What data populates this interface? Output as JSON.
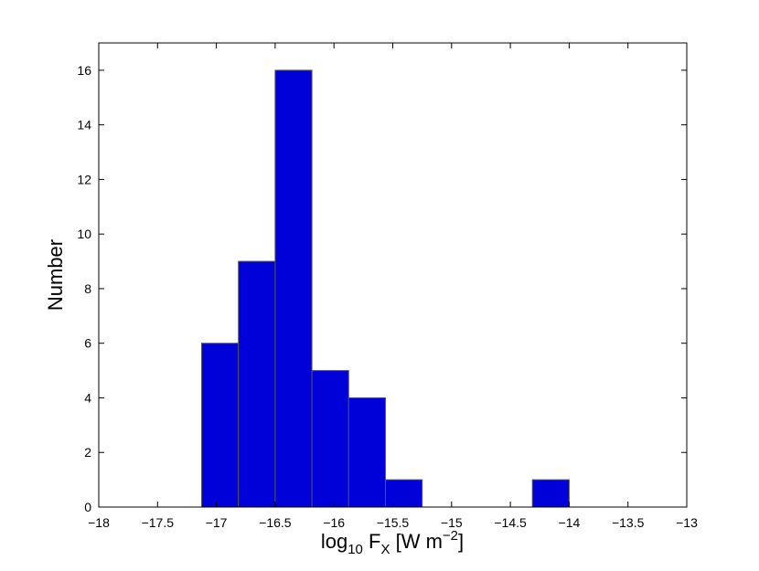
{
  "chart_data": {
    "type": "bar",
    "subtype": "histogram",
    "bins": [
      {
        "x_start": -17.125,
        "x_end": -16.8125,
        "value": 6
      },
      {
        "x_start": -16.8125,
        "x_end": -16.5,
        "value": 9
      },
      {
        "x_start": -16.5,
        "x_end": -16.1875,
        "value": 16
      },
      {
        "x_start": -16.1875,
        "x_end": -15.875,
        "value": 5
      },
      {
        "x_start": -15.875,
        "x_end": -15.5625,
        "value": 4
      },
      {
        "x_start": -15.5625,
        "x_end": -15.25,
        "value": 1
      },
      {
        "x_start": -14.3125,
        "x_end": -14.0,
        "value": 1
      }
    ],
    "xlim": [
      -18,
      -13
    ],
    "ylim": [
      0,
      17
    ],
    "xticks": [
      "−18",
      "−17.5",
      "−17",
      "−16.5",
      "−16",
      "−15.5",
      "−15",
      "−14.5",
      "−14",
      "−13.5",
      "−13"
    ],
    "xtick_values": [
      -18,
      -17.5,
      -17,
      -16.5,
      -16,
      -15.5,
      -15,
      -14.5,
      -14,
      -13.5,
      -13
    ],
    "yticks": [
      "0",
      "2",
      "4",
      "6",
      "8",
      "10",
      "12",
      "14",
      "16"
    ],
    "ytick_values": [
      0,
      2,
      4,
      6,
      8,
      10,
      12,
      14,
      16
    ],
    "xlabel": {
      "main": "log",
      "sub": "10",
      "mid": " F",
      "sub2": "X",
      "rest": " [W m",
      "sup": "−2",
      "end": "]"
    },
    "ylabel": "Number",
    "grid": false,
    "bar_color": "#0000d8",
    "edge_color": "#555555"
  }
}
